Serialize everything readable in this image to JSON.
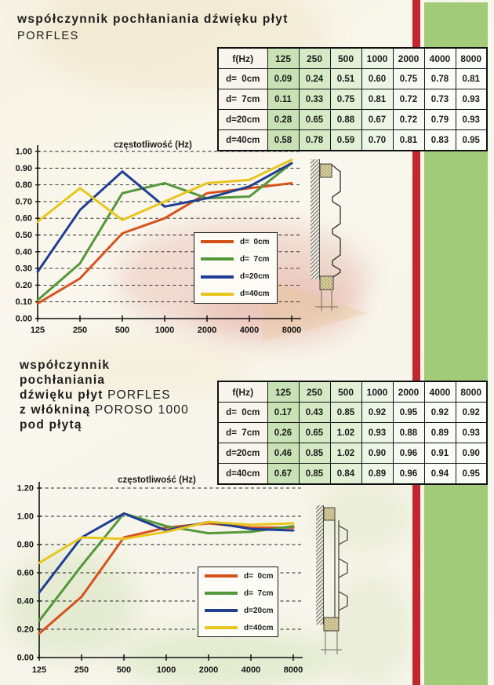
{
  "sections": [
    {
      "title_bold": "współczynnik pochłaniania dźwięku płyt",
      "title_regular": "PORFLES"
    },
    {
      "title_lines": [
        {
          "bold": "współczynnik",
          "regular": ""
        },
        {
          "bold": "pochłaniania",
          "regular": ""
        },
        {
          "bold": "dźwięku płyt ",
          "regular": "PORFLES"
        },
        {
          "bold": "z włókniną ",
          "regular": "POROSO 1000"
        },
        {
          "bold": "pod płytą",
          "regular": ""
        }
      ]
    }
  ],
  "tables": [
    {
      "header": [
        "f(Hz)",
        "125",
        "250",
        "500",
        "1000",
        "2000",
        "4000",
        "8000"
      ],
      "rows": [
        {
          "label": "d=  0cm",
          "values": [
            "0.09",
            "0.24",
            "0.51",
            "0.60",
            "0.75",
            "0.78",
            "0.81"
          ]
        },
        {
          "label": "d=  7cm",
          "values": [
            "0.11",
            "0.33",
            "0.75",
            "0.81",
            "0.72",
            "0.73",
            "0.93"
          ]
        },
        {
          "label": "d=20cm",
          "values": [
            "0.28",
            "0.65",
            "0.88",
            "0.67",
            "0.72",
            "0.79",
            "0.93"
          ]
        },
        {
          "label": "d=40cm",
          "values": [
            "0.58",
            "0.78",
            "0.59",
            "0.70",
            "0.81",
            "0.83",
            "0.95"
          ]
        }
      ]
    },
    {
      "header": [
        "f(Hz)",
        "125",
        "250",
        "500",
        "1000",
        "2000",
        "4000",
        "8000"
      ],
      "rows": [
        {
          "label": "d=  0cm",
          "values": [
            "0.17",
            "0.43",
            "0.85",
            "0.92",
            "0.95",
            "0.92",
            "0.92"
          ]
        },
        {
          "label": "d=  7cm",
          "values": [
            "0.26",
            "0.65",
            "1.02",
            "0.93",
            "0.88",
            "0.89",
            "0.93"
          ]
        },
        {
          "label": "d=20cm",
          "values": [
            "0.46",
            "0.85",
            "1.02",
            "0.90",
            "0.96",
            "0.91",
            "0.90"
          ]
        },
        {
          "label": "d=40cm",
          "values": [
            "0.67",
            "0.85",
            "0.84",
            "0.89",
            "0.96",
            "0.94",
            "0.95"
          ]
        }
      ]
    }
  ],
  "chart_data": [
    {
      "type": "line",
      "title": "częstotliwość (Hz)",
      "categories": [
        "125",
        "250",
        "500",
        "1000",
        "2000",
        "4000",
        "8000"
      ],
      "ylim": [
        0,
        1.0
      ],
      "ytick_step": 0.1,
      "grid": "horizontal-dashed",
      "legend_position": "inside-right-bottom",
      "series": [
        {
          "name": "d=  0cm",
          "color": "#d6521c",
          "values": [
            0.09,
            0.24,
            0.51,
            0.6,
            0.75,
            0.78,
            0.81
          ]
        },
        {
          "name": "d=  7cm",
          "color": "#55983a",
          "values": [
            0.11,
            0.33,
            0.75,
            0.81,
            0.72,
            0.73,
            0.93
          ]
        },
        {
          "name": "d=20cm",
          "color": "#203e92",
          "values": [
            0.28,
            0.65,
            0.88,
            0.67,
            0.72,
            0.79,
            0.93
          ]
        },
        {
          "name": "d=40cm",
          "color": "#e9c61d",
          "values": [
            0.58,
            0.78,
            0.59,
            0.7,
            0.81,
            0.83,
            0.95
          ]
        }
      ]
    },
    {
      "type": "line",
      "title": "częstotliwość (Hz)",
      "categories": [
        "125",
        "250",
        "500",
        "1000",
        "2000",
        "4000",
        "8000"
      ],
      "ylim": [
        0,
        1.2
      ],
      "ytick_step": 0.2,
      "grid": "horizontal-dashed",
      "legend_position": "inside-right-bottom",
      "series": [
        {
          "name": "d=  0cm",
          "color": "#d6521c",
          "values": [
            0.17,
            0.43,
            0.85,
            0.92,
            0.95,
            0.92,
            0.92
          ]
        },
        {
          "name": "d=  7cm",
          "color": "#55983a",
          "values": [
            0.26,
            0.65,
            1.02,
            0.93,
            0.88,
            0.89,
            0.93
          ]
        },
        {
          "name": "d=20cm",
          "color": "#203e92",
          "values": [
            0.46,
            0.85,
            1.02,
            0.9,
            0.96,
            0.91,
            0.9
          ]
        },
        {
          "name": "d=40cm",
          "color": "#e9c61d",
          "values": [
            0.67,
            0.85,
            0.84,
            0.89,
            0.96,
            0.94,
            0.95
          ]
        }
      ]
    }
  ],
  "colors": {
    "red_stripe": "#c22630",
    "green_stripe": "#a5ce7d",
    "table_column_bg": [
      "#f8f6ec",
      "#c8e2b6",
      "#d5e9c5",
      "#e2f0d6",
      "#edf5e6",
      "#f6f9f1",
      "#fafcf7",
      "#fbfdf9"
    ],
    "table_border": "#161616",
    "text": "#1c1c1c"
  }
}
